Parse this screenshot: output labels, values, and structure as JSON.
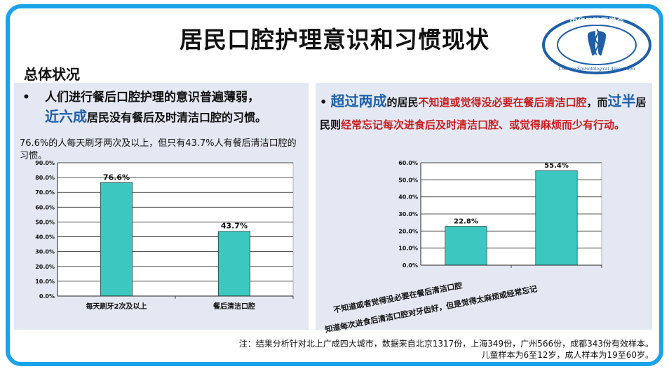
{
  "slide": {
    "title": "居民口腔护理意识和习惯现状",
    "section_heading": "总体状况",
    "logo": {
      "text": "中华口腔医学会",
      "subtext": "Chinese Stomatological Association",
      "icon": "tooth-emblem-icon",
      "color": "#1f5fa8"
    },
    "left_bullet": {
      "dot": "•",
      "line1": "人们进行餐后口腔护理的意识普遍薄弱，",
      "line2_big": "近六成",
      "line2_rest": "居民没有餐后及时清洁口腔的习惯。"
    },
    "left_note": "76.6%的人每天刷牙两次及以上，但只有43.7%人有餐后清洁口腔的习惯。",
    "right_text": {
      "dot": "•",
      "big1": "超过两成",
      "part1": "的居民",
      "red1": "不知道或觉得没必要在餐后清洁口腔",
      "part2": "，而",
      "big2": "过半",
      "part3": "居民则",
      "red2": "经常忘记每次进食后及时清洁口腔、或觉得麻烦而少有行动。"
    },
    "footnote": {
      "line1": "注：结果分析针对北上广成四大城市，数据来自北京1317份，上海349份，广州566份，成都343份有效样本。",
      "line2": "儿童样本为6至12岁，成人样本为19至60岁。"
    },
    "colors": {
      "frame": "#1aa3e8",
      "bar": "#3cc8c0",
      "panel": "#e3e8f3",
      "accent_blue": "#1f5fa8",
      "accent_red": "#c81e1e"
    }
  },
  "chart_data": [
    {
      "type": "bar",
      "categories": [
        "每天刷牙2次及以上",
        "餐后清洁口腔"
      ],
      "values": [
        76.6,
        43.7
      ],
      "data_labels": [
        "76.6%",
        "43.7%"
      ],
      "y_ticks": [
        "0.0%",
        "10.0%",
        "20.0%",
        "30.0%",
        "40.0%",
        "50.0%",
        "60.0%",
        "70.0%",
        "80.0%",
        "90.0%"
      ],
      "ylim": [
        0,
        90
      ],
      "grid": true
    },
    {
      "type": "bar",
      "categories": [
        "不知道或者觉得没必要在餐后清洁口腔",
        "知道每次进食后清洁口腔对牙齿好，但是觉得太麻烦或经常忘记"
      ],
      "values": [
        22.8,
        55.4
      ],
      "data_labels": [
        "22.8%",
        "55.4%"
      ],
      "y_ticks": [
        "0.0%",
        "10.0%",
        "20.0%",
        "30.0%",
        "40.0%",
        "50.0%",
        "60.0%"
      ],
      "ylim": [
        0,
        60
      ],
      "grid": true
    }
  ]
}
